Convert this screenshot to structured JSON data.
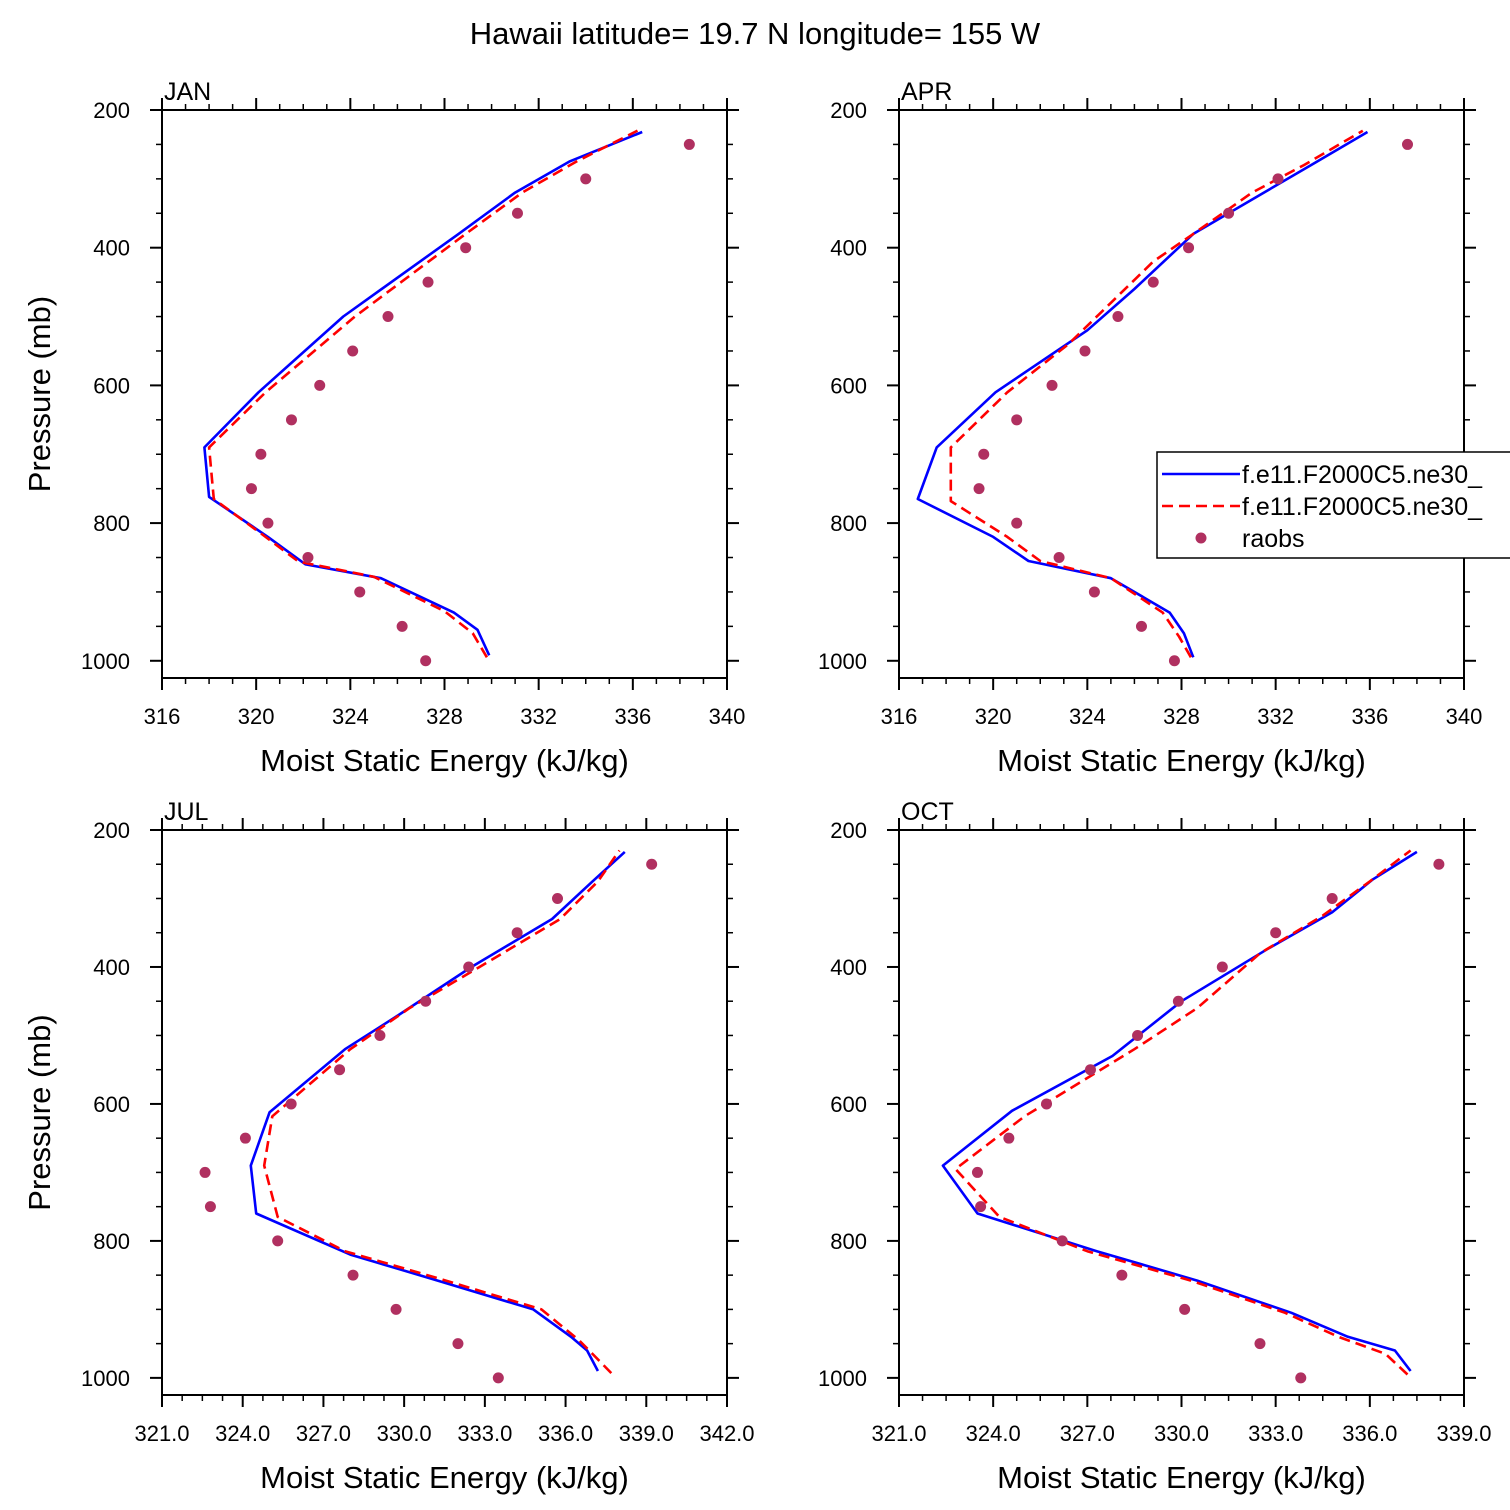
{
  "figure": {
    "title": "Hawaii  latitude= 19.7 N longitude= 155 W"
  },
  "legend": {
    "entries": [
      {
        "label": "f.e11.F2000C5.ne30_",
        "style": "solid",
        "color": "#0000ff"
      },
      {
        "label": "f.e11.F2000C5.ne30_",
        "style": "dashed",
        "color": "#ff0000"
      },
      {
        "label": "raobs",
        "style": "marker",
        "color": "#b03060"
      }
    ]
  },
  "chart_data": [
    {
      "type": "line",
      "panel_label": "JAN",
      "xlabel": "Moist Static Energy (kJ/kg)",
      "ylabel": "Pressure (mb)",
      "xlim": [
        316,
        340
      ],
      "ylim": [
        200,
        1025
      ],
      "x_ticks": [
        316,
        320,
        324,
        328,
        332,
        336,
        340
      ],
      "x_tick_labels": [
        "316",
        "320",
        "324",
        "328",
        "332",
        "336",
        "340"
      ],
      "y_ticks": [
        200,
        400,
        600,
        800,
        1000
      ],
      "y_tick_labels": [
        "200",
        "400",
        "600",
        "800",
        "1000"
      ],
      "series": [
        {
          "color": "#0000ff",
          "style": "solid",
          "points": [
            [
              329.9,
              992
            ],
            [
              329.4,
              955
            ],
            [
              328.4,
              930
            ],
            [
              325.3,
              880
            ],
            [
              322.1,
              860
            ],
            [
              320.5,
              820
            ],
            [
              318.0,
              762
            ],
            [
              317.8,
              690
            ],
            [
              320.1,
              610
            ],
            [
              323.7,
              500
            ],
            [
              328.6,
              380
            ],
            [
              331.0,
              320
            ],
            [
              333.3,
              275
            ],
            [
              336.4,
              232
            ]
          ]
        },
        {
          "color": "#ff0000",
          "style": "dashed",
          "points": [
            [
              329.8,
              995
            ],
            [
              329.2,
              960
            ],
            [
              328.0,
              928
            ],
            [
              325.0,
              878
            ],
            [
              321.8,
              856
            ],
            [
              320.2,
              815
            ],
            [
              318.2,
              765
            ],
            [
              318.0,
              690
            ],
            [
              320.4,
              610
            ],
            [
              324.2,
              500
            ],
            [
              328.9,
              380
            ],
            [
              331.3,
              320
            ],
            [
              333.6,
              275
            ],
            [
              336.2,
              230
            ]
          ]
        },
        {
          "color": "#b03060",
          "style": "marker",
          "points": [
            [
              338.4,
              250
            ],
            [
              334.0,
              300
            ],
            [
              331.1,
              350
            ],
            [
              328.9,
              400
            ],
            [
              327.3,
              450
            ],
            [
              325.6,
              500
            ],
            [
              324.1,
              550
            ],
            [
              322.7,
              600
            ],
            [
              321.5,
              650
            ],
            [
              320.2,
              700
            ],
            [
              319.8,
              750
            ],
            [
              320.5,
              800
            ],
            [
              322.2,
              850
            ],
            [
              324.4,
              900
            ],
            [
              326.2,
              950
            ],
            [
              327.2,
              1000
            ]
          ]
        }
      ]
    },
    {
      "type": "line",
      "panel_label": "APR",
      "xlabel": "Moist Static Energy (kJ/kg)",
      "ylabel": "",
      "xlim": [
        316,
        340
      ],
      "ylim": [
        200,
        1025
      ],
      "x_ticks": [
        316,
        320,
        324,
        328,
        332,
        336,
        340
      ],
      "x_tick_labels": [
        "316",
        "320",
        "324",
        "328",
        "332",
        "336",
        "340"
      ],
      "y_ticks": [
        200,
        400,
        600,
        800,
        1000
      ],
      "y_tick_labels": [
        "200",
        "400",
        "600",
        "800",
        "1000"
      ],
      "series": [
        {
          "color": "#0000ff",
          "style": "solid",
          "points": [
            [
              328.5,
              995
            ],
            [
              328.1,
              960
            ],
            [
              327.5,
              930
            ],
            [
              325.0,
              880
            ],
            [
              321.5,
              855
            ],
            [
              320.0,
              820
            ],
            [
              316.8,
              765
            ],
            [
              317.6,
              690
            ],
            [
              320.1,
              610
            ],
            [
              324.0,
              520
            ],
            [
              326.0,
              460
            ],
            [
              328.5,
              380
            ],
            [
              331.5,
              320
            ],
            [
              333.5,
              280
            ],
            [
              335.9,
              232
            ]
          ]
        },
        {
          "color": "#ff0000",
          "style": "dashed",
          "points": [
            [
              328.4,
              995
            ],
            [
              327.9,
              965
            ],
            [
              327.2,
              930
            ],
            [
              325.0,
              880
            ],
            [
              322.0,
              855
            ],
            [
              320.6,
              820
            ],
            [
              318.2,
              768
            ],
            [
              318.2,
              690
            ],
            [
              320.6,
              610
            ],
            [
              323.2,
              540
            ],
            [
              325.0,
              480
            ],
            [
              326.8,
              420
            ],
            [
              328.5,
              380
            ],
            [
              331.0,
              320
            ],
            [
              333.2,
              280
            ],
            [
              335.7,
              230
            ]
          ]
        },
        {
          "color": "#b03060",
          "style": "marker",
          "points": [
            [
              337.6,
              250
            ],
            [
              332.1,
              300
            ],
            [
              330.0,
              350
            ],
            [
              328.3,
              400
            ],
            [
              326.8,
              450
            ],
            [
              325.3,
              500
            ],
            [
              323.9,
              550
            ],
            [
              322.5,
              600
            ],
            [
              321.0,
              650
            ],
            [
              319.6,
              700
            ],
            [
              319.4,
              750
            ],
            [
              321.0,
              800
            ],
            [
              322.8,
              850
            ],
            [
              324.3,
              900
            ],
            [
              326.3,
              950
            ],
            [
              327.7,
              1000
            ]
          ]
        }
      ]
    },
    {
      "type": "line",
      "panel_label": "JUL",
      "xlabel": "Moist Static Energy (kJ/kg)",
      "ylabel": "Pressure (mb)",
      "xlim": [
        321,
        342
      ],
      "ylim": [
        200,
        1025
      ],
      "x_ticks": [
        321,
        324,
        327,
        330,
        333,
        336,
        339,
        342
      ],
      "x_tick_labels": [
        "321.0",
        "324.0",
        "327.0",
        "330.0",
        "333.0",
        "336.0",
        "339.0",
        "342.0"
      ],
      "y_ticks": [
        200,
        400,
        600,
        800,
        1000
      ],
      "y_tick_labels": [
        "200",
        "400",
        "600",
        "800",
        "1000"
      ],
      "series": [
        {
          "color": "#0000ff",
          "style": "solid",
          "points": [
            [
              337.2,
              990
            ],
            [
              336.8,
              960
            ],
            [
              336.2,
              940
            ],
            [
              334.8,
              900
            ],
            [
              331.0,
              855
            ],
            [
              328.0,
              820
            ],
            [
              324.5,
              760
            ],
            [
              324.3,
              690
            ],
            [
              325.0,
              612
            ],
            [
              327.8,
              520
            ],
            [
              329.8,
              470
            ],
            [
              332.5,
              400
            ],
            [
              335.5,
              330
            ],
            [
              337.0,
              275
            ],
            [
              338.2,
              232
            ]
          ]
        },
        {
          "color": "#ff0000",
          "style": "dashed",
          "points": [
            [
              337.7,
              993
            ],
            [
              337.0,
              965
            ],
            [
              336.5,
              945
            ],
            [
              335.1,
              900
            ],
            [
              331.3,
              855
            ],
            [
              327.8,
              815
            ],
            [
              325.3,
              765
            ],
            [
              324.8,
              690
            ],
            [
              325.1,
              618
            ],
            [
              328.0,
              520
            ],
            [
              330.2,
              460
            ],
            [
              332.8,
              400
            ],
            [
              335.8,
              330
            ],
            [
              337.2,
              275
            ],
            [
              338.0,
              230
            ]
          ]
        },
        {
          "color": "#b03060",
          "style": "marker",
          "points": [
            [
              339.2,
              250
            ],
            [
              335.7,
              300
            ],
            [
              334.2,
              350
            ],
            [
              332.4,
              400
            ],
            [
              330.8,
              450
            ],
            [
              329.1,
              500
            ],
            [
              327.6,
              550
            ],
            [
              325.8,
              600
            ],
            [
              324.1,
              650
            ],
            [
              322.6,
              700
            ],
            [
              322.8,
              750
            ],
            [
              325.3,
              800
            ],
            [
              328.1,
              850
            ],
            [
              329.7,
              900
            ],
            [
              332.0,
              950
            ],
            [
              333.5,
              1000
            ]
          ]
        }
      ]
    },
    {
      "type": "line",
      "panel_label": "OCT",
      "xlabel": "Moist Static Energy (kJ/kg)",
      "ylabel": "",
      "xlim": [
        321,
        339
      ],
      "ylim": [
        200,
        1025
      ],
      "x_ticks": [
        321,
        324,
        327,
        330,
        333,
        336,
        339
      ],
      "x_tick_labels": [
        "321.0",
        "324.0",
        "327.0",
        "330.0",
        "333.0",
        "336.0",
        "339.0"
      ],
      "y_ticks": [
        200,
        400,
        600,
        800,
        1000
      ],
      "y_tick_labels": [
        "200",
        "400",
        "600",
        "800",
        "1000"
      ],
      "series": [
        {
          "color": "#0000ff",
          "style": "solid",
          "points": [
            [
              337.3,
              990
            ],
            [
              336.8,
              960
            ],
            [
              335.3,
              940
            ],
            [
              333.5,
              905
            ],
            [
              330.5,
              858
            ],
            [
              327.3,
              815
            ],
            [
              323.5,
              760
            ],
            [
              322.4,
              690
            ],
            [
              324.6,
              610
            ],
            [
              327.8,
              530
            ],
            [
              330.0,
              450
            ],
            [
              332.7,
              375
            ],
            [
              334.8,
              320
            ],
            [
              336.1,
              272
            ],
            [
              337.5,
              232
            ]
          ]
        },
        {
          "color": "#ff0000",
          "style": "dashed",
          "points": [
            [
              337.2,
              995
            ],
            [
              336.5,
              965
            ],
            [
              335.0,
              940
            ],
            [
              333.3,
              905
            ],
            [
              330.3,
              858
            ],
            [
              327.0,
              815
            ],
            [
              324.2,
              765
            ],
            [
              322.8,
              695
            ],
            [
              325.0,
              618
            ],
            [
              328.5,
              520
            ],
            [
              330.5,
              460
            ],
            [
              332.5,
              380
            ],
            [
              334.5,
              325
            ],
            [
              336.0,
              275
            ],
            [
              337.3,
              230
            ]
          ]
        },
        {
          "color": "#b03060",
          "style": "marker",
          "points": [
            [
              338.2,
              250
            ],
            [
              334.8,
              300
            ],
            [
              333.0,
              350
            ],
            [
              331.3,
              400
            ],
            [
              329.9,
              450
            ],
            [
              328.6,
              500
            ],
            [
              327.1,
              550
            ],
            [
              325.7,
              600
            ],
            [
              324.5,
              650
            ],
            [
              323.5,
              700
            ],
            [
              323.6,
              750
            ],
            [
              326.2,
              800
            ],
            [
              328.1,
              850
            ],
            [
              330.1,
              900
            ],
            [
              332.5,
              950
            ],
            [
              333.8,
              1000
            ]
          ]
        }
      ]
    }
  ]
}
